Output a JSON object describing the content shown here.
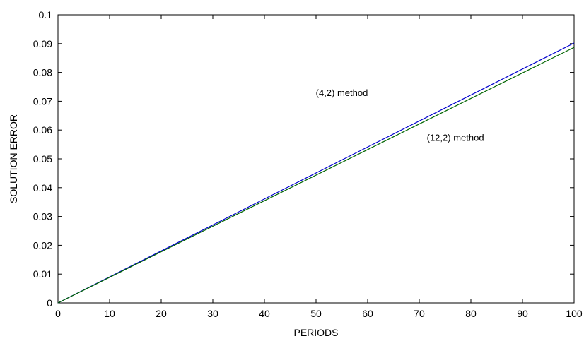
{
  "chart_data": {
    "type": "line",
    "title": "",
    "xlabel": "PERIODS",
    "ylabel": "SOLUTION ERROR",
    "xlim": [
      0,
      100
    ],
    "ylim": [
      0,
      0.1
    ],
    "xticks": [
      "0",
      "10",
      "20",
      "30",
      "40",
      "50",
      "60",
      "70",
      "80",
      "90",
      "100"
    ],
    "yticks": [
      "0",
      "0.01",
      "0.02",
      "0.03",
      "0.04",
      "0.05",
      "0.06",
      "0.07",
      "0.08",
      "0.09",
      "0.1"
    ],
    "grid": false,
    "series": [
      {
        "color": "#0000cc",
        "x": [
          0,
          100
        ],
        "y": [
          0,
          0.0902
        ]
      },
      {
        "color": "#006400",
        "x": [
          0,
          100
        ],
        "y": [
          0,
          0.0887
        ]
      }
    ],
    "annotations": [
      {
        "text": "(4,2) method",
        "x": 55,
        "y": 0.0718
      },
      {
        "text": "(12,2) method",
        "x": 77,
        "y": 0.0563
      }
    ]
  }
}
